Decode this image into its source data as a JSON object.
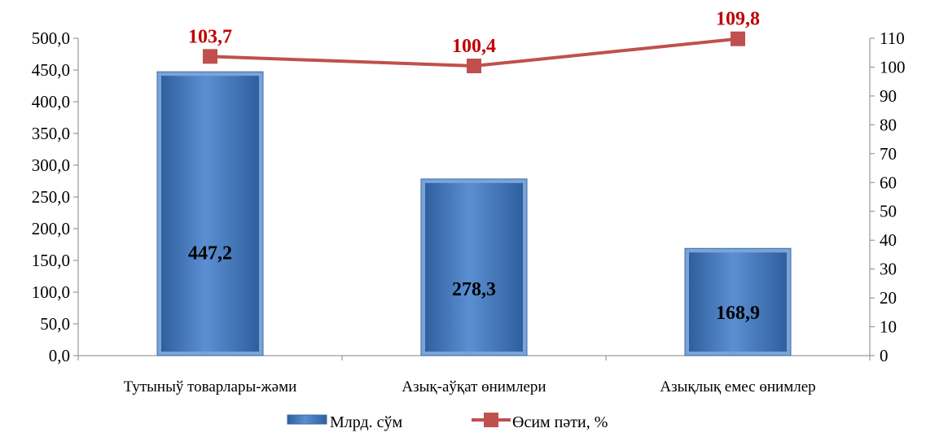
{
  "chart_data": {
    "type": "bar",
    "categories": [
      "Тутыныў товарлары-жәми",
      "Азық-аўқат өнимлери",
      "Азықлық емес өнимлер"
    ],
    "series": [
      {
        "name": "Млрд. сўм",
        "type": "bar",
        "axis": "left",
        "values": [
          447.2,
          278.3,
          168.9
        ],
        "labels": [
          "447,2",
          "278,3",
          "168,9"
        ],
        "color": "#4f81bd"
      },
      {
        "name": "Өсим пәти, %",
        "type": "line",
        "axis": "right",
        "values": [
          103.7,
          100.4,
          109.8
        ],
        "labels": [
          "103,7",
          "100,4",
          "109,8"
        ],
        "color": "#c0504d"
      }
    ],
    "y_left": {
      "min": 0,
      "max": 500,
      "step": 50,
      "ticks": [
        "0,0",
        "50,0",
        "100,0",
        "150,0",
        "200,0",
        "250,0",
        "300,0",
        "350,0",
        "400,0",
        "450,0",
        "500,0"
      ]
    },
    "y_right": {
      "min": 0,
      "max": 110,
      "step": 10,
      "ticks": [
        "0",
        "10",
        "20",
        "30",
        "40",
        "50",
        "60",
        "70",
        "80",
        "90",
        "100",
        "110"
      ]
    },
    "grid": false,
    "legend_position": "bottom",
    "bar_label_color": "#000000",
    "line_label_color": "#c00000"
  }
}
